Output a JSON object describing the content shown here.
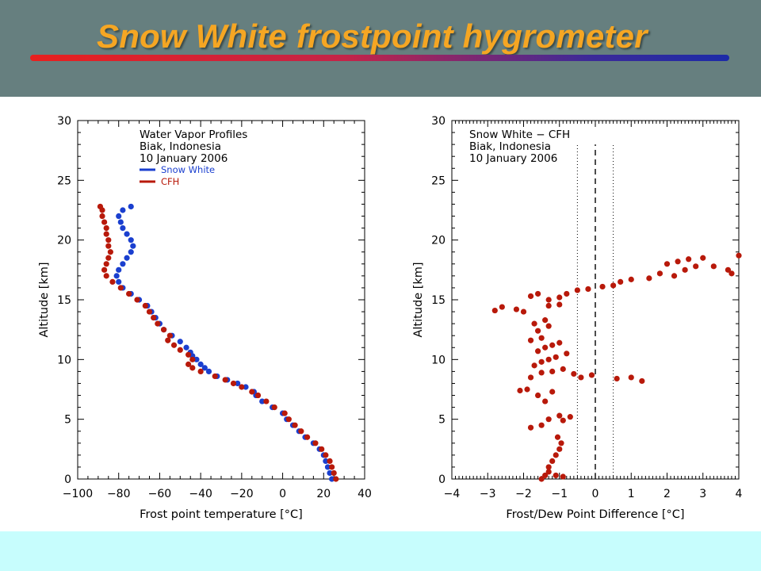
{
  "slide": {
    "title": "Snow White frostpoint hygrometer",
    "colors": {
      "header_bg": "#667f7f",
      "title_text": "#f5a623",
      "footer_bg": "#c7fdfd",
      "snow_white": "#1a3fcf",
      "cfh": "#b8190a"
    }
  },
  "chart_data": [
    {
      "type": "scatter",
      "legend_title_lines": [
        "Water Vapor Profiles",
        "Biak, Indonesia",
        "10 January 2006"
      ],
      "legend_placement": "top-right",
      "xlabel": "Frost point temperature [°C]",
      "ylabel": "Altitude [km]",
      "xlim": [
        -100,
        40
      ],
      "ylim": [
        0,
        30
      ],
      "xticks": [
        "−100",
        "−80",
        "−60",
        "−40",
        "−20",
        "0",
        "20",
        "40"
      ],
      "yticks": [
        "0",
        "5",
        "10",
        "15",
        "20",
        "25",
        "30"
      ],
      "grid": false,
      "series": [
        {
          "name": "Snow White",
          "color": "#1a3fcf",
          "points": [
            [
              24,
              0
            ],
            [
              23,
              0.5
            ],
            [
              22,
              1
            ],
            [
              21,
              1.5
            ],
            [
              20,
              2
            ],
            [
              18,
              2.5
            ],
            [
              15,
              3
            ],
            [
              11,
              3.5
            ],
            [
              8,
              4
            ],
            [
              5,
              4.5
            ],
            [
              2,
              5
            ],
            [
              0,
              5.5
            ],
            [
              -5,
              6
            ],
            [
              -10,
              6.5
            ],
            [
              -13,
              7
            ],
            [
              -14,
              7.3
            ],
            [
              -18,
              7.7
            ],
            [
              -22,
              8
            ],
            [
              -27,
              8.3
            ],
            [
              -32,
              8.6
            ],
            [
              -36,
              9
            ],
            [
              -38,
              9.3
            ],
            [
              -40,
              9.6
            ],
            [
              -42,
              10
            ],
            [
              -44,
              10.3
            ],
            [
              -45,
              10.6
            ],
            [
              -47,
              11
            ],
            [
              -50,
              11.5
            ],
            [
              -54,
              12
            ],
            [
              -58,
              12.5
            ],
            [
              -60,
              13
            ],
            [
              -62,
              13.5
            ],
            [
              -64,
              14
            ],
            [
              -66,
              14.5
            ],
            [
              -70,
              15
            ],
            [
              -74,
              15.5
            ],
            [
              -78,
              16
            ],
            [
              -80,
              16.5
            ],
            [
              -81,
              17
            ],
            [
              -80,
              17.5
            ],
            [
              -78,
              18
            ],
            [
              -76,
              18.5
            ],
            [
              -74,
              19
            ],
            [
              -73,
              19.5
            ],
            [
              -74,
              20
            ],
            [
              -76,
              20.5
            ],
            [
              -78,
              21
            ],
            [
              -79,
              21.5
            ],
            [
              -80,
              22
            ],
            [
              -78,
              22.5
            ],
            [
              -74,
              22.8
            ]
          ]
        },
        {
          "name": "CFH",
          "color": "#b8190a",
          "points": [
            [
              26,
              0
            ],
            [
              25,
              0.5
            ],
            [
              24,
              1
            ],
            [
              23,
              1.5
            ],
            [
              21,
              2
            ],
            [
              19,
              2.5
            ],
            [
              16,
              3
            ],
            [
              12,
              3.5
            ],
            [
              9,
              4
            ],
            [
              6,
              4.5
            ],
            [
              3,
              5
            ],
            [
              1,
              5.5
            ],
            [
              -4,
              6
            ],
            [
              -8,
              6.5
            ],
            [
              -12,
              7
            ],
            [
              -15,
              7.3
            ],
            [
              -20,
              7.7
            ],
            [
              -24,
              8
            ],
            [
              -28,
              8.3
            ],
            [
              -33,
              8.6
            ],
            [
              -40,
              9
            ],
            [
              -44,
              9.3
            ],
            [
              -46,
              9.6
            ],
            [
              -44,
              10
            ],
            [
              -46,
              10.4
            ],
            [
              -50,
              10.8
            ],
            [
              -53,
              11.2
            ],
            [
              -56,
              11.6
            ],
            [
              -55,
              12
            ],
            [
              -58,
              12.5
            ],
            [
              -61,
              13
            ],
            [
              -63,
              13.5
            ],
            [
              -65,
              14
            ],
            [
              -67,
              14.5
            ],
            [
              -71,
              15
            ],
            [
              -75,
              15.5
            ],
            [
              -79,
              16
            ],
            [
              -83,
              16.5
            ],
            [
              -86,
              17
            ],
            [
              -87,
              17.5
            ],
            [
              -86,
              18
            ],
            [
              -85,
              18.5
            ],
            [
              -84,
              19
            ],
            [
              -85,
              19.5
            ],
            [
              -85,
              20
            ],
            [
              -86,
              20.5
            ],
            [
              -86,
              21
            ],
            [
              -87,
              21.5
            ],
            [
              -88,
              22
            ],
            [
              -88,
              22.5
            ],
            [
              -89,
              22.8
            ]
          ]
        }
      ]
    },
    {
      "type": "scatter",
      "legend_title_lines": [
        "Snow White − CFH",
        "Biak, Indonesia",
        "10 January 2006"
      ],
      "legend_placement": "top-left",
      "xlabel": "Frost/Dew Point Difference [°C]",
      "ylabel": "Altitude [km]",
      "xlim": [
        -4,
        4
      ],
      "ylim": [
        0,
        30
      ],
      "xticks": [
        "−4",
        "−3",
        "−2",
        "−1",
        "0",
        "1",
        "2",
        "3",
        "4"
      ],
      "yticks": [
        "0",
        "5",
        "10",
        "15",
        "20",
        "25",
        "30"
      ],
      "grid": false,
      "reference_lines": [
        {
          "x": 0,
          "style": "dashed",
          "y_top": 28
        },
        {
          "x": -0.5,
          "style": "dotted",
          "y_top": 28
        },
        {
          "x": 0.5,
          "style": "dotted",
          "y_top": 28
        }
      ],
      "series": [
        {
          "name": "",
          "color": "#b8190a",
          "points": [
            [
              -1.5,
              0
            ],
            [
              -1.4,
              0.3
            ],
            [
              -1.3,
              0.6
            ],
            [
              -1.1,
              0.3
            ],
            [
              -0.9,
              0.2
            ],
            [
              -1.3,
              1
            ],
            [
              -1.2,
              1.5
            ],
            [
              -1.1,
              2
            ],
            [
              -1.0,
              2.5
            ],
            [
              -0.95,
              3
            ],
            [
              -1.05,
              3.5
            ],
            [
              -1.5,
              4.5
            ],
            [
              -1.3,
              5
            ],
            [
              -1.0,
              5.3
            ],
            [
              -0.7,
              5.2
            ],
            [
              -0.9,
              4.9
            ],
            [
              -1.6,
              7.0
            ],
            [
              -1.2,
              7.3
            ],
            [
              -1.9,
              7.5
            ],
            [
              -2.1,
              7.4
            ],
            [
              -1.8,
              8.5
            ],
            [
              -1.5,
              8.9
            ],
            [
              -1.2,
              9.0
            ],
            [
              -0.9,
              9.2
            ],
            [
              -0.6,
              8.8
            ],
            [
              -0.4,
              8.5
            ],
            [
              -1.7,
              9.5
            ],
            [
              -1.5,
              9.8
            ],
            [
              -1.3,
              10.0
            ],
            [
              -1.1,
              10.2
            ],
            [
              -0.8,
              10.5
            ],
            [
              -1.6,
              10.7
            ],
            [
              -1.4,
              11.0
            ],
            [
              -1.2,
              11.2
            ],
            [
              -1.0,
              11.4
            ],
            [
              -1.8,
              11.6
            ],
            [
              -1.5,
              11.8
            ],
            [
              -1.6,
              12.4
            ],
            [
              -1.3,
              12.8
            ],
            [
              -1.7,
              13.0
            ],
            [
              -1.4,
              13.3
            ],
            [
              -2.0,
              14.0
            ],
            [
              -2.2,
              14.2
            ],
            [
              -2.6,
              14.4
            ],
            [
              -2.8,
              14.1
            ],
            [
              -1.3,
              14.5
            ],
            [
              -1.0,
              14.6
            ],
            [
              -1.8,
              15.3
            ],
            [
              -1.6,
              15.5
            ],
            [
              -1.3,
              15.0
            ],
            [
              -1.0,
              15.2
            ],
            [
              -0.8,
              15.5
            ],
            [
              -0.5,
              15.8
            ],
            [
              -0.2,
              15.9
            ],
            [
              0.2,
              16.1
            ],
            [
              0.5,
              16.2
            ],
            [
              0.7,
              16.5
            ],
            [
              1.0,
              16.7
            ],
            [
              1.5,
              16.8
            ],
            [
              1.8,
              17.2
            ],
            [
              2.0,
              18.0
            ],
            [
              2.3,
              18.2
            ],
            [
              2.6,
              18.4
            ],
            [
              3.0,
              18.5
            ],
            [
              3.3,
              17.8
            ],
            [
              3.7,
              17.5
            ],
            [
              4.0,
              18.7
            ],
            [
              2.2,
              17.0
            ],
            [
              2.5,
              17.5
            ],
            [
              2.8,
              17.8
            ],
            [
              3.8,
              17.2
            ],
            [
              1.3,
              8.2
            ],
            [
              1.0,
              8.5
            ],
            [
              0.6,
              8.4
            ],
            [
              -0.1,
              8.7
            ],
            [
              -1.4,
              6.5
            ],
            [
              -1.8,
              4.3
            ]
          ]
        }
      ]
    }
  ]
}
